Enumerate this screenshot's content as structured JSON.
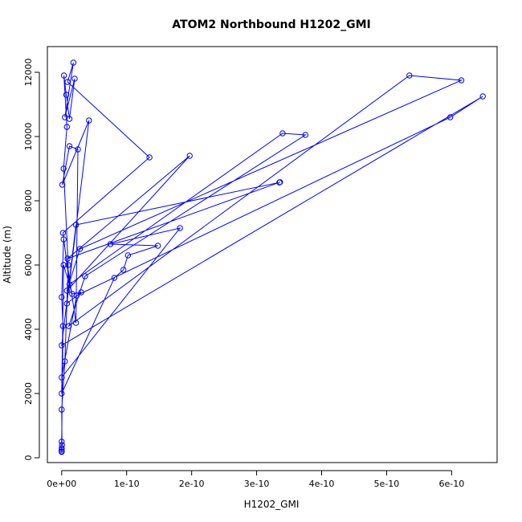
{
  "chart_data": {
    "type": "line",
    "title": "ATOM2 Northbound H1202_GMI",
    "xlabel": "H1202_GMI",
    "ylabel": "Altitude (m)",
    "xlim": [
      -2.2e-11,
      6.7e-10
    ],
    "ylim": [
      -150,
      12800
    ],
    "x_ticks": [
      {
        "value": 0,
        "label": "0e+00"
      },
      {
        "value": 1e-10,
        "label": "1e-10"
      },
      {
        "value": 2e-10,
        "label": "2e-10"
      },
      {
        "value": 3e-10,
        "label": "3e-10"
      },
      {
        "value": 4e-10,
        "label": "4e-10"
      },
      {
        "value": 5e-10,
        "label": "5e-10"
      },
      {
        "value": 6e-10,
        "label": "6e-10"
      }
    ],
    "y_ticks": [
      {
        "value": 0,
        "label": "0"
      },
      {
        "value": 2000,
        "label": "2000"
      },
      {
        "value": 4000,
        "label": "4000"
      },
      {
        "value": 6000,
        "label": "6000"
      },
      {
        "value": 8000,
        "label": "8000"
      },
      {
        "value": 10000,
        "label": "10000"
      },
      {
        "value": 12000,
        "label": "12000"
      }
    ],
    "series_color": "#0000ff",
    "marker": "open-circle",
    "series": [
      {
        "x": [
          0,
          0,
          0,
          5e-13,
          0,
          5e-12,
          1e-11,
          3e-12,
          8e-12,
          3.5e-12,
          7e-12,
          1.2e-11,
          2e-11,
          5e-12,
          1.8e-11,
          9e-12,
          1.35e-10,
          2e-12,
          1.2e-11,
          3.4e-10,
          3.75e-10,
          3.6e-11,
          1.1e-11,
          5.35e-10,
          6.15e-10,
          2.8e-11,
          8e-12,
          1.97e-10,
          9e-12,
          3.36e-10,
          3.35e-10,
          2.2e-11,
          0,
          6.48e-10,
          5.98e-10,
          2.3e-11,
          0,
          1.82e-10,
          7.5e-11,
          1.48e-10,
          1.02e-10,
          9.5e-11,
          8.1e-11,
          0,
          3e-12,
          1.6e-11,
          3e-11,
          8e-12,
          4.2e-11,
          1e-12,
          1.2e-11,
          2.5e-11,
          2.2e-11,
          3e-12,
          0,
          2e-12,
          0,
          0
        ],
        "y": [
          180,
          250,
          300,
          400,
          1500,
          3000,
          6000,
          9000,
          10300,
          11900,
          11300,
          10550,
          11800,
          10600,
          12300,
          11700,
          9350,
          7000,
          5400,
          10100,
          10050,
          5650,
          4100,
          11900,
          11750,
          6500,
          5200,
          9400,
          6200,
          8580,
          8570,
          7250,
          3500,
          11250,
          10600,
          5050,
          2500,
          7150,
          6650,
          6600,
          6300,
          5850,
          5600,
          2000,
          6000,
          5100,
          5150,
          4800,
          10500,
          8500,
          9700,
          9600,
          4200,
          6800,
          5000,
          4100,
          500,
          200
        ]
      }
    ]
  }
}
